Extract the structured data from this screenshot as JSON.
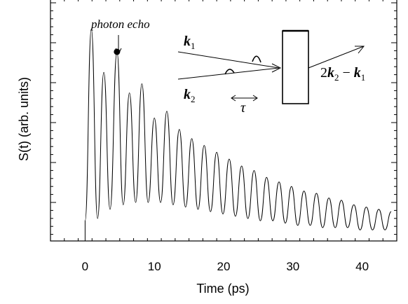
{
  "chart_data": {
    "type": "line",
    "xlabel": "Time (ps)",
    "ylabel": "S(t) (arb. units)",
    "xlim": [
      -5,
      45
    ],
    "xticks": [
      0,
      10,
      20,
      30,
      40
    ],
    "xtick_labels": [
      "0",
      "10",
      "20",
      "30",
      "40"
    ],
    "ylim": [
      0,
      1.0
    ],
    "grid": false,
    "series": [
      {
        "values_description_free": true,
        "x": [
          0,
          0.9,
          1.8,
          2.7,
          3.6,
          4.6,
          5.5,
          6.4,
          7.3,
          8.2,
          9.1,
          10.0,
          10.9,
          11.8,
          12.7,
          13.6,
          14.5,
          15.4,
          16.3,
          17.2,
          18.1,
          19.0,
          19.9,
          20.8,
          21.7,
          22.6,
          23.5,
          24.4,
          25.3,
          26.2,
          27.1,
          28.0,
          28.9,
          29.8,
          30.7,
          31.6,
          32.5,
          33.4,
          34.3,
          35.2,
          36.1,
          37.0,
          37.9,
          38.8,
          39.7,
          40.6,
          41.5,
          42.4,
          43.3,
          44.2
        ],
        "y": [
          0.07,
          0.91,
          0.08,
          0.72,
          0.12,
          0.81,
          0.14,
          0.63,
          0.15,
          0.67,
          0.15,
          0.52,
          0.15,
          0.55,
          0.14,
          0.47,
          0.13,
          0.43,
          0.12,
          0.4,
          0.11,
          0.37,
          0.1,
          0.34,
          0.09,
          0.31,
          0.08,
          0.29,
          0.07,
          0.26,
          0.07,
          0.24,
          0.06,
          0.22,
          0.05,
          0.2,
          0.05,
          0.19,
          0.04,
          0.17,
          0.04,
          0.16,
          0.04,
          0.14,
          0.03,
          0.13,
          0.03,
          0.12,
          0.03,
          0.11
        ]
      }
    ],
    "annotations": {
      "echo_label": "photon echo",
      "echo_point": {
        "x": 4.6,
        "y": 0.81
      }
    }
  },
  "inset": {
    "k1": "k",
    "k1_sub": "1",
    "k2": "k",
    "k2_sub": "2",
    "tau": "τ",
    "out_prefix": "2",
    "out_k2": "k",
    "out_sub2": "2",
    "out_minus": " − ",
    "out_k1": "k",
    "out_sub1": "1"
  }
}
